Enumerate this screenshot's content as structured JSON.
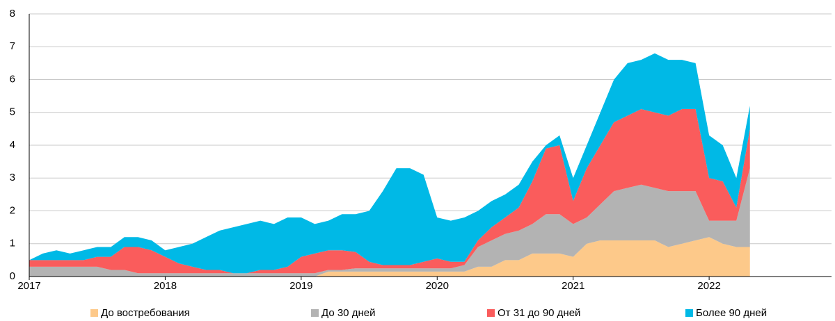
{
  "chart_data": {
    "type": "stacked-area",
    "x": [
      2017.0,
      2017.1,
      2017.2,
      2017.3,
      2017.4,
      2017.5,
      2017.6,
      2017.7,
      2017.8,
      2017.9,
      2018.0,
      2018.1,
      2018.2,
      2018.3,
      2018.4,
      2018.5,
      2018.6,
      2018.7,
      2018.8,
      2018.9,
      2019.0,
      2019.1,
      2019.2,
      2019.3,
      2019.4,
      2019.5,
      2019.6,
      2019.7,
      2019.8,
      2019.9,
      2020.0,
      2020.1,
      2020.2,
      2020.3,
      2020.4,
      2020.5,
      2020.6,
      2020.7,
      2020.8,
      2020.9,
      2021.0,
      2021.1,
      2021.2,
      2021.3,
      2021.4,
      2021.5,
      2021.6,
      2021.7,
      2021.8,
      2021.9,
      2022.0,
      2022.1,
      2022.2,
      2022.3
    ],
    "series": [
      {
        "name": "До востребования",
        "color": "#fdc98a",
        "values": [
          0,
          0,
          0,
          0,
          0,
          0,
          0,
          0,
          0,
          0,
          0,
          0,
          0,
          0,
          0,
          0,
          0,
          0,
          0,
          0,
          0,
          0,
          0.15,
          0.15,
          0.15,
          0.15,
          0.15,
          0.15,
          0.15,
          0.15,
          0.15,
          0.15,
          0.15,
          0.3,
          0.3,
          0.5,
          0.5,
          0.7,
          0.7,
          0.7,
          0.6,
          1.0,
          1.1,
          1.1,
          1.1,
          1.1,
          1.1,
          0.9,
          1.0,
          1.1,
          1.2,
          1.0,
          0.9,
          0.9
        ]
      },
      {
        "name": "До 30 дней",
        "color": "#b3b3b3",
        "values": [
          0.3,
          0.3,
          0.3,
          0.3,
          0.3,
          0.3,
          0.2,
          0.2,
          0.1,
          0.1,
          0.1,
          0.1,
          0.1,
          0.1,
          0.1,
          0.1,
          0.1,
          0.1,
          0.1,
          0.1,
          0.1,
          0.1,
          0.05,
          0.05,
          0.1,
          0.1,
          0.1,
          0.1,
          0.1,
          0.1,
          0.1,
          0.1,
          0.2,
          0.6,
          0.8,
          0.8,
          0.9,
          0.9,
          1.2,
          1.2,
          1.0,
          0.8,
          1.1,
          1.5,
          1.6,
          1.7,
          1.6,
          1.7,
          1.6,
          1.5,
          0.5,
          0.7,
          0.8,
          2.4
        ]
      },
      {
        "name": "От 31 до 90 дней",
        "color": "#fa5c5c",
        "values": [
          0.2,
          0.2,
          0.2,
          0.2,
          0.2,
          0.3,
          0.4,
          0.7,
          0.8,
          0.7,
          0.5,
          0.3,
          0.2,
          0.1,
          0.1,
          0,
          0,
          0.1,
          0.1,
          0.2,
          0.5,
          0.6,
          0.6,
          0.6,
          0.5,
          0.2,
          0.1,
          0.1,
          0.1,
          0.2,
          0.3,
          0.2,
          0.1,
          0.2,
          0.4,
          0.5,
          0.7,
          1.3,
          2.0,
          2.1,
          0.7,
          1.5,
          1.8,
          2.1,
          2.2,
          2.3,
          2.3,
          2.3,
          2.5,
          2.5,
          1.3,
          1.2,
          0.4,
          1.2
        ]
      },
      {
        "name": "Более 90 дней",
        "color": "#00b9e6",
        "values": [
          0,
          0.2,
          0.3,
          0.2,
          0.3,
          0.3,
          0.3,
          0.3,
          0.3,
          0.3,
          0.2,
          0.5,
          0.7,
          1.0,
          1.2,
          1.4,
          1.5,
          1.5,
          1.4,
          1.5,
          1.2,
          0.9,
          0.9,
          1.1,
          1.15,
          1.55,
          2.25,
          2.95,
          2.95,
          2.65,
          1.25,
          1.25,
          1.35,
          0.9,
          0.8,
          0.7,
          0.7,
          0.6,
          0.1,
          0.3,
          0.7,
          0.7,
          1.0,
          1.3,
          1.6,
          1.5,
          1.8,
          1.7,
          1.5,
          1.4,
          1.3,
          1.1,
          0.9,
          0.7
        ]
      }
    ],
    "xlim": [
      2017,
      2022.9
    ],
    "xticks": [
      2017,
      2018,
      2019,
      2020,
      2021,
      2022
    ],
    "ylim": [
      0,
      8
    ],
    "yticks": [
      0,
      1,
      2,
      3,
      4,
      5,
      6,
      7,
      8
    ],
    "grid": true
  }
}
